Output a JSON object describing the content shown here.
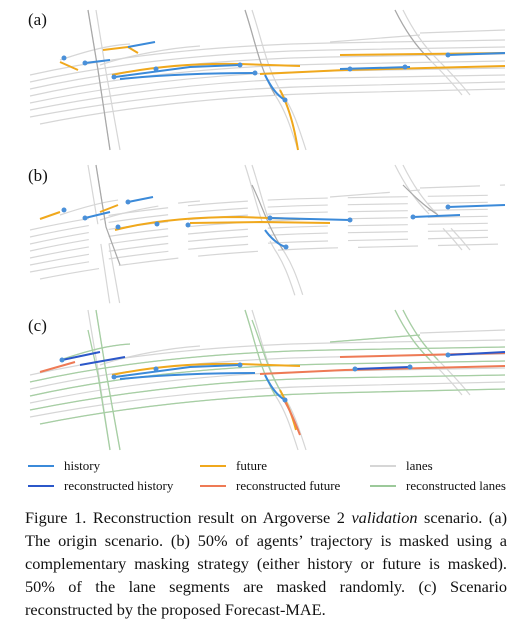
{
  "panels": [
    {
      "label": "(a)"
    },
    {
      "label": "(b)"
    },
    {
      "label": "(c)"
    }
  ],
  "legend": [
    {
      "label": "history",
      "color": "#3b8ad9"
    },
    {
      "label": "future",
      "color": "#f0a81c"
    },
    {
      "label": "lanes",
      "color": "#d6d6d6"
    },
    {
      "label": "reconstructed history",
      "color": "#2b57c9"
    },
    {
      "label": "reconstructed future",
      "color": "#ee7a55"
    },
    {
      "label": "reconstructed lanes",
      "color": "#9cc99a"
    }
  ],
  "caption": {
    "prefix": "Figure 1.   Reconstruction result on Argoverse 2 ",
    "emph": "validation",
    "suffix": " scenario. (a) The origin scenario. (b) 50% of agents’ trajectory is masked using a complementary masking strategy (either history or future is masked). 50% of the lane segments are masked randomly. (c) Scenario reconstructed by the proposed Forecast-MAE."
  },
  "colors": {
    "lane": "#d9d9d9",
    "lane_dark": "#a8a8a8",
    "lane_reconstructed": "#a6cfa3",
    "history": "#3b8ad9",
    "future": "#f0a81c",
    "history_reconstructed": "#2b57c9",
    "future_reconstructed": "#ee7a55",
    "agent_dot": "#4a90d9"
  }
}
